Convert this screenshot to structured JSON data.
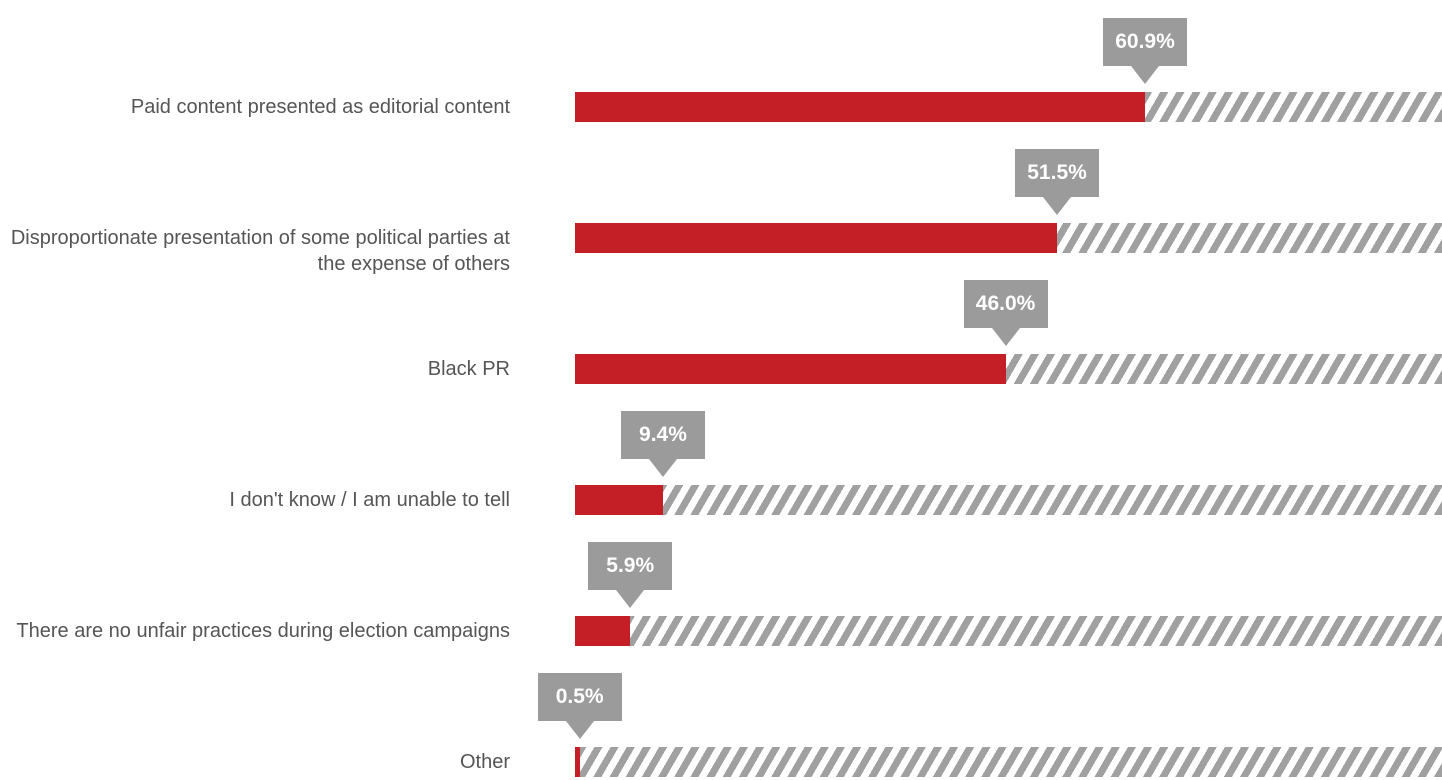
{
  "chart_data": {
    "type": "bar",
    "orientation": "horizontal",
    "categories": [
      "Paid content presented as editorial content",
      "Disproportionate presentation of some political parties at the expense of others",
      "Black PR",
      "I don't know / I am unable to tell",
      "There are no unfair practices during election campaigns",
      "Other"
    ],
    "values": [
      60.9,
      51.5,
      46.0,
      9.4,
      5.9,
      0.5
    ],
    "value_labels": [
      "60.9%",
      "51.5%",
      "46.0%",
      "9.4%",
      "5.9%",
      "0.5%"
    ],
    "color": "#c41e26",
    "track_color": "#a0a0a0",
    "label_box_color": "#9b9b9b"
  }
}
